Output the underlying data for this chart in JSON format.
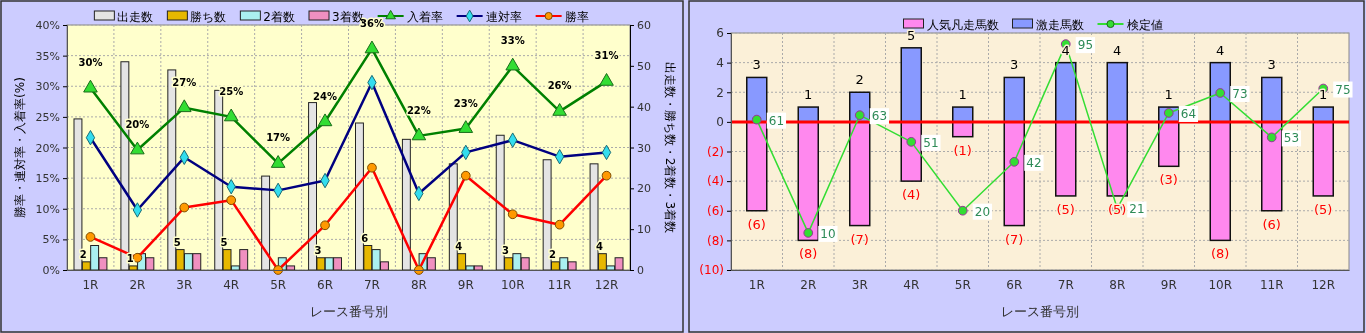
{
  "chart_data": [
    {
      "type": "bar",
      "categories": [
        "1R",
        "2R",
        "3R",
        "4R",
        "5R",
        "6R",
        "7R",
        "8R",
        "9R",
        "10R",
        "11R",
        "12R"
      ],
      "xlabel": "レース番号別",
      "ylabel": "勝率・連対率・入着率(%)",
      "y2label": "出走数・勝ち数・2着数・3着数",
      "ylim": [
        0,
        40
      ],
      "yticks": [
        {
          "value": 0,
          "label": "0%"
        },
        {
          "value": 5,
          "label": "5%"
        },
        {
          "value": 10,
          "label": "10%"
        },
        {
          "value": 15,
          "label": "15%"
        },
        {
          "value": 20,
          "label": "20%"
        },
        {
          "value": 25,
          "label": "25%"
        },
        {
          "value": 30,
          "label": "30%"
        },
        {
          "value": 35,
          "label": "35%"
        },
        {
          "value": 40,
          "label": "40%"
        }
      ],
      "y2lim": [
        0,
        60
      ],
      "y2ticks": [
        0,
        10,
        20,
        30,
        40,
        50,
        60
      ],
      "grid": true,
      "legend": "top",
      "series": [
        {
          "name": "出走数",
          "axis": "y2",
          "color": "#e4e4e4",
          "values": [
            37,
            51,
            49,
            44,
            23,
            41,
            36,
            32,
            26,
            33,
            27,
            26
          ]
        },
        {
          "name": "勝ち数",
          "axis": "y2",
          "color": "#e6b800",
          "values": [
            2,
            1,
            5,
            5,
            0,
            3,
            6,
            0,
            4,
            3,
            2,
            4
          ],
          "value_labels": [
            "2",
            "1",
            "5",
            "5",
            null,
            "3",
            "6",
            null,
            "4",
            "3",
            "2",
            "4"
          ]
        },
        {
          "name": "2着数",
          "axis": "y2",
          "color": "#aaf0f0",
          "values": [
            6,
            4,
            4,
            1,
            3,
            3,
            5,
            4,
            1,
            4,
            3,
            1
          ]
        },
        {
          "name": "3着数",
          "axis": "y2",
          "color": "#f090c0",
          "values": [
            3,
            3,
            4,
            5,
            1,
            3,
            2,
            3,
            1,
            3,
            2,
            3
          ]
        },
        {
          "name": "入着率",
          "type": "line",
          "color": "#008000",
          "marker": "triangle",
          "colors": [
            "#33dd33",
            "#33dd33",
            "#33dd33",
            "#33dd33",
            "#33dd33",
            "#33dd33",
            "#33dd33",
            "#33dd33",
            "#33dd33",
            "#33dd33",
            "#33dd33",
            "#33dd33"
          ],
          "values": [
            29.7,
            19.6,
            26.5,
            25.0,
            17.4,
            24.2,
            36.1,
            21.9,
            23.1,
            33.3,
            25.9,
            30.8
          ],
          "value_labels": [
            "30%",
            "20%",
            "27%",
            "25%",
            "17%",
            "24%",
            "36%",
            "22%",
            "23%",
            "33%",
            "26%",
            "31%"
          ]
        },
        {
          "name": "連対率",
          "type": "line",
          "color": "#000080",
          "marker": "diamond",
          "colors": [
            "#33ddee",
            "#33ddee",
            "#33ddee",
            "#33ddee",
            "#33ddee",
            "#33ddee",
            "#33ddee",
            "#33ddee",
            "#33ddee",
            "#33ddee",
            "#33ddee",
            "#33ddee"
          ],
          "values": [
            21.6,
            9.8,
            18.4,
            13.6,
            13.0,
            14.6,
            30.6,
            12.5,
            19.2,
            21.2,
            18.5,
            19.2
          ]
        },
        {
          "name": "勝率",
          "type": "line",
          "color": "#ff0000",
          "marker": "circle",
          "colors": [
            "#ff9900",
            "#ff9900",
            "#ff9900",
            "#ff9900",
            "#ff9900",
            "#ff9900",
            "#ff9900",
            "#ff9900",
            "#ff9900",
            "#ff9900",
            "#ff9900",
            "#ff9900"
          ],
          "values": [
            5.4,
            2.0,
            10.2,
            11.4,
            0,
            7.3,
            16.7,
            0,
            15.4,
            9.1,
            7.4,
            15.4
          ]
        }
      ]
    },
    {
      "type": "bar",
      "stacked": true,
      "categories": [
        "1R",
        "2R",
        "3R",
        "4R",
        "5R",
        "6R",
        "7R",
        "8R",
        "9R",
        "10R",
        "11R",
        "12R"
      ],
      "xlabel": "レース番号別",
      "ylim": [
        -10,
        6
      ],
      "yticks": [
        {
          "value": 6,
          "label": "6"
        },
        {
          "value": 4,
          "label": "4"
        },
        {
          "value": 2,
          "label": "2"
        },
        {
          "value": 0,
          "label": "0"
        },
        {
          "value": -2,
          "label": "(2)"
        },
        {
          "value": -4,
          "label": "(4)"
        },
        {
          "value": -6,
          "label": "(6)"
        },
        {
          "value": -8,
          "label": "(8)"
        },
        {
          "value": -10,
          "label": "(10)"
        }
      ],
      "y2lim": [
        -6.7,
        100
      ],
      "grid": true,
      "legend": "top",
      "ref_lines": [
        {
          "axis": "y",
          "value": 0,
          "color": "#ff0000"
        }
      ],
      "series": [
        {
          "name": "人気凡走馬数",
          "color": "#ff88ee",
          "values": [
            -6,
            -8,
            -7,
            -4,
            -1,
            -7,
            -5,
            -5,
            -3,
            -8,
            -6,
            -5
          ],
          "value_labels": [
            "(6)",
            "(8)",
            "(7)",
            "(4)",
            "(1)",
            "(7)",
            "(5)",
            "(5)",
            "(3)",
            "(8)",
            "(6)",
            "(5)"
          ]
        },
        {
          "name": "激走馬数",
          "color": "#8899ff",
          "values": [
            3,
            1,
            2,
            5,
            1,
            3,
            4,
            4,
            1,
            4,
            3,
            1
          ],
          "value_labels": [
            "3",
            "1",
            "2",
            "5",
            "1",
            "3",
            "4",
            "4",
            "1",
            "4",
            "3",
            "1"
          ]
        },
        {
          "name": "検定値",
          "type": "line",
          "axis": "y2",
          "color": "#33dd33",
          "marker": "circle",
          "values": [
            61,
            10,
            63,
            51,
            20,
            42,
            95,
            21,
            64,
            73,
            53,
            75
          ],
          "value_labels": [
            "61",
            "10",
            "63",
            "51",
            "20",
            "42",
            "95",
            "21",
            "64",
            "73",
            "53",
            "75"
          ]
        }
      ]
    }
  ]
}
